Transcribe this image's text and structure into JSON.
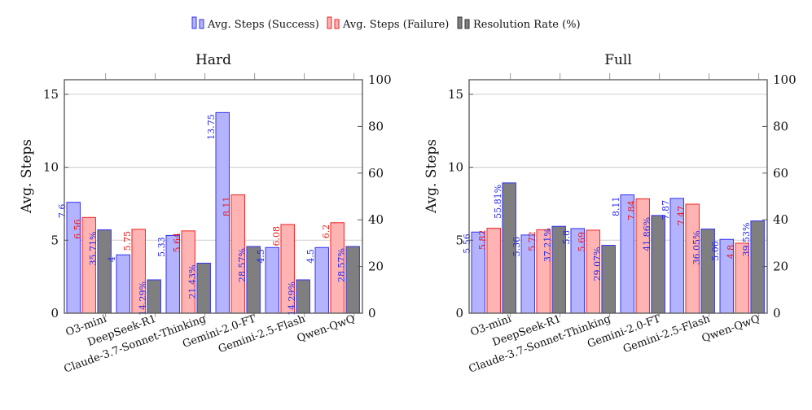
{
  "chart_data": {
    "type": "bar",
    "legend": {
      "placement": "top-center",
      "entries": [
        {
          "name": "Avg. Steps (Success)",
          "fill": "#b3b3ff",
          "stroke": "#3333ee"
        },
        {
          "name": "Avg. Steps (Failure)",
          "fill": "#ffb3b3",
          "stroke": "#ee2222"
        },
        {
          "name": "Resolution Rate (%)",
          "fill": "#7f7f7f",
          "stroke": "#333333"
        }
      ]
    },
    "panels": [
      {
        "title": "Hard",
        "ylabel": "Avg. Steps",
        "ylim": [
          0,
          16
        ],
        "yticks": [
          0,
          5,
          10,
          15
        ],
        "y2lim": [
          0,
          100
        ],
        "y2ticks": [
          0,
          20,
          40,
          60,
          80,
          100
        ],
        "grid": true,
        "categories": [
          "O3-mini",
          "DeepSeek-R1",
          "Claude-3.7-Sonnet-Thinking",
          "Gemini-2.0-FT",
          "Gemini-2.5-Flash",
          "Qwen-QwQ"
        ],
        "series": [
          {
            "name": "Avg. Steps (Success)",
            "axis": "left",
            "values": [
              7.6,
              4,
              5.33,
              13.75,
              4.5,
              4.5
            ],
            "labels": [
              "7.6",
              "4",
              "5.33",
              "13.75",
              "4.5",
              "4.5"
            ]
          },
          {
            "name": "Avg. Steps (Failure)",
            "axis": "left",
            "values": [
              6.56,
              5.75,
              5.64,
              8.11,
              6.08,
              6.2
            ],
            "labels": [
              "6.56",
              "5.75",
              "5.64",
              "8.11",
              "6.08",
              "6.2"
            ]
          },
          {
            "name": "Resolution Rate (%)",
            "axis": "right",
            "values": [
              35.71,
              14.29,
              21.43,
              28.57,
              14.29,
              28.57
            ],
            "labels": [
              "35.71%",
              "14.29%",
              "21.43%",
              "28.57%",
              "14.29%",
              "28.57%"
            ]
          }
        ]
      },
      {
        "title": "Full",
        "ylabel": "Avg. Steps",
        "ylim": [
          0,
          16
        ],
        "yticks": [
          0,
          5,
          10,
          15
        ],
        "y2lim": [
          0,
          100
        ],
        "y2ticks": [
          0,
          20,
          40,
          60,
          80,
          100
        ],
        "grid": true,
        "categories": [
          "O3-mini",
          "DeepSeek-R1",
          "Claude-3.7-Sonnet-Thinking",
          "Gemini-2.0-FT",
          "Gemini-2.5-Flash",
          "Qwen-QwQ"
        ],
        "series": [
          {
            "name": "Avg. Steps (Success)",
            "axis": "left",
            "values": [
              5.56,
              5.36,
              5.8,
              8.11,
              7.87,
              5.06
            ],
            "labels": [
              "5.56",
              "5.36",
              "5.8",
              "8.11",
              "7.87",
              "5.06"
            ]
          },
          {
            "name": "Avg. Steps (Failure)",
            "axis": "left",
            "values": [
              5.82,
              5.72,
              5.69,
              7.84,
              7.47,
              4.8
            ],
            "labels": [
              "5.82",
              "5.72",
              "5.69",
              "7.84",
              "7.47",
              "4.8"
            ]
          },
          {
            "name": "Resolution Rate (%)",
            "axis": "right",
            "values": [
              55.81,
              37.21,
              29.07,
              41.86,
              36.05,
              39.53
            ],
            "labels": [
              "55.81%",
              "37.21%",
              "29.07%",
              "41.86%",
              "36.05%",
              "39.53%"
            ]
          }
        ]
      }
    ]
  }
}
